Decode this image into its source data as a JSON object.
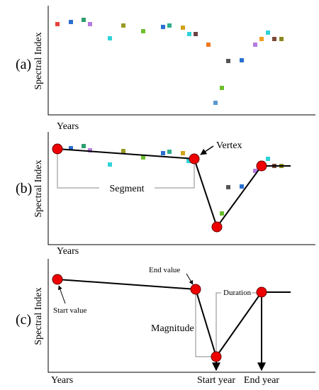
{
  "panels": [
    {
      "label": "(a)",
      "y_axis": "Spectral Index",
      "x_axis": "Years"
    },
    {
      "label": "(b)",
      "y_axis": "Spectral Index",
      "x_axis": "Years",
      "annotations": {
        "vertex": "Vertex",
        "segment": "Segment"
      }
    },
    {
      "label": "(c)",
      "y_axis": "Spectral Index",
      "x_axis": "Years",
      "annotations": {
        "start_value": "Start value",
        "end_value": "End value",
        "magnitude": "Magnitude",
        "duration": "Duration",
        "start_year": "Start year",
        "end_year": "End year"
      }
    }
  ]
}
